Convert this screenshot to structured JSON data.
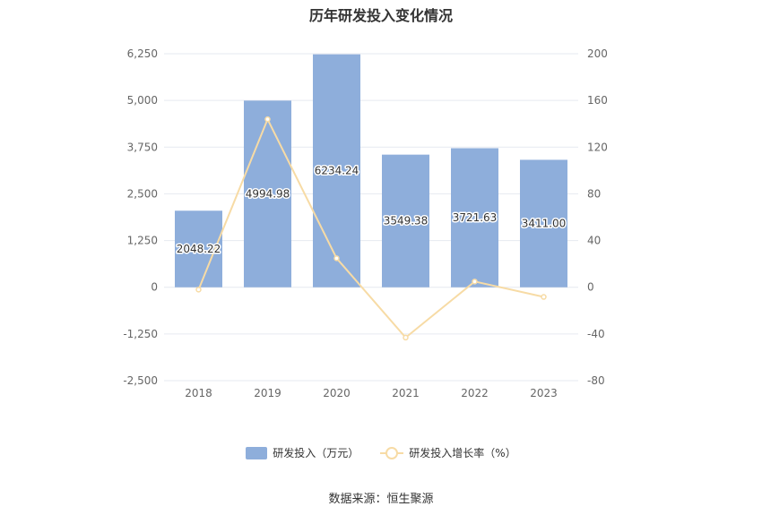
{
  "chart_data": {
    "type": "bar",
    "title": "历年研发投入变化情况",
    "categories": [
      "2018",
      "2019",
      "2020",
      "2021",
      "2022",
      "2023"
    ],
    "series": [
      {
        "name": "研发投入（万元）",
        "type": "bar",
        "axis": "left",
        "values": [
          2048.22,
          4994.98,
          6234.24,
          3549.38,
          3721.63,
          3411.0
        ],
        "labels": [
          "2048.22",
          "4994.98",
          "6234.24",
          "3549.38",
          "3721.63",
          "3411.00"
        ],
        "color": "#8eaedb"
      },
      {
        "name": "研发投入增长率（%）",
        "type": "line",
        "axis": "right",
        "values": [
          -2.0,
          143.9,
          24.8,
          -43.1,
          4.9,
          -8.3
        ],
        "color": "#f7dba5"
      }
    ],
    "y_left": {
      "min": -2500,
      "max": 6250,
      "ticks": [
        "6,250",
        "5,000",
        "3,750",
        "2,500",
        "1,250",
        "0",
        "-1,250",
        "-2,500"
      ]
    },
    "y_right": {
      "min": -80,
      "max": 200,
      "ticks": [
        "200",
        "160",
        "120",
        "80",
        "40",
        "0",
        "-40",
        "-80"
      ]
    },
    "grid": true,
    "legend_position": "bottom"
  },
  "source_text": "数据来源：恒生聚源"
}
